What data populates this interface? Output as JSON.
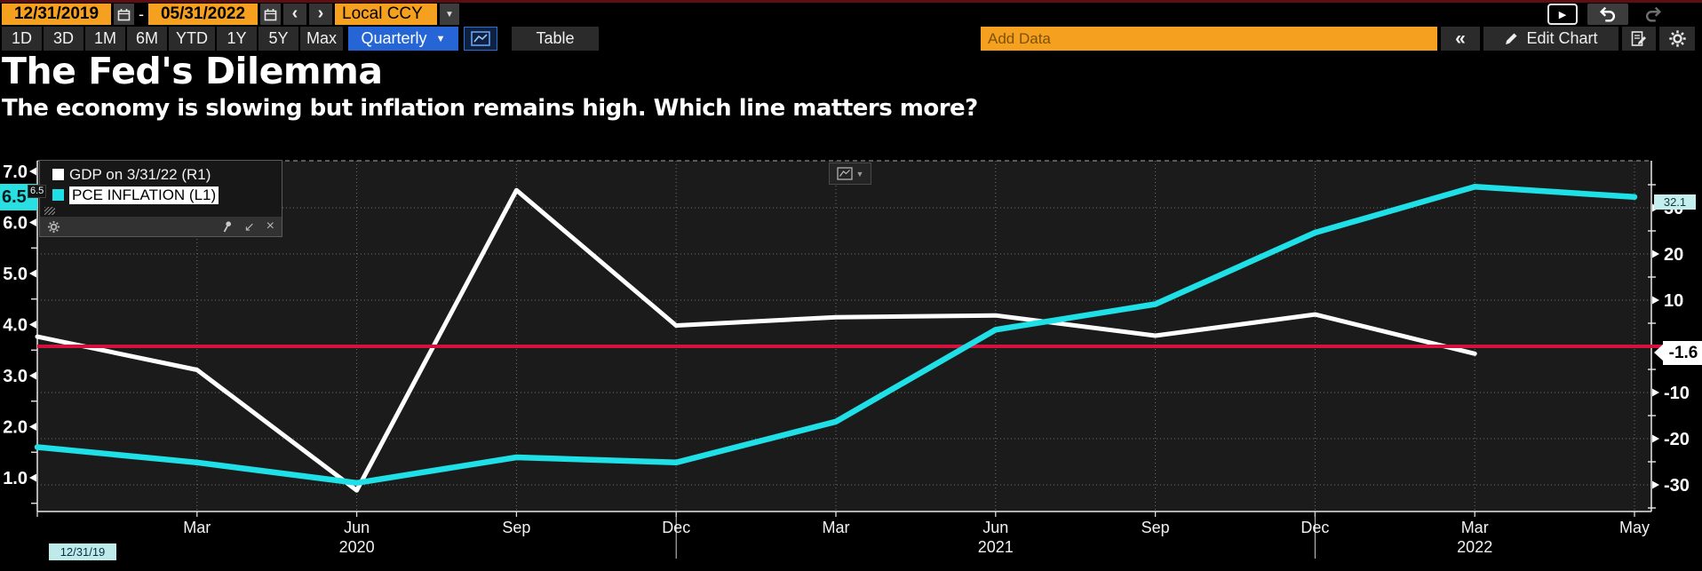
{
  "topbar": {
    "date_from": "12/31/2019",
    "date_separator": "-",
    "date_to": "05/31/2022",
    "prev_icon_label": "‹",
    "next_icon_label": "›",
    "currency": "Local CCY",
    "currency_caret": "▼"
  },
  "toolbar": {
    "ranges": [
      "1D",
      "3D",
      "1M",
      "6M",
      "YTD",
      "1Y",
      "5Y",
      "Max"
    ],
    "period_label": "Quarterly",
    "period_caret": "▼",
    "table_label": "Table",
    "add_data_placeholder": "Add Data",
    "back_icon_label": "«",
    "edit_chart_label": "Edit Chart"
  },
  "title": "The Fed's Dilemma",
  "subtitle": "The economy is slowing but inflation remains high. Which line matters more?",
  "legend": {
    "items": [
      {
        "label": "GDP on 3/31/22 (R1)",
        "color": "#ffffff",
        "selected": false
      },
      {
        "label": "PCE INFLATION (L1)",
        "color": "#1fe0e6",
        "selected": true
      }
    ],
    "close_icon": "×",
    "minimize_icon": "↙"
  },
  "badges": {
    "left_current": "6.5",
    "left_current_mini": "6.5",
    "right_equivalent": "32.1",
    "gdp_last": "-1.6",
    "start_date": "12/31/19"
  },
  "chart_data": {
    "type": "line",
    "x_categories": [
      "Dec 2019",
      "Mar 2020",
      "Jun 2020",
      "Sep 2020",
      "Dec 2020",
      "Mar 2021",
      "Jun 2021",
      "Sep 2021",
      "Dec 2021",
      "Mar 2022",
      "May 2022"
    ],
    "x_ticks": [
      {
        "index": 1,
        "label": "Mar"
      },
      {
        "index": 2,
        "label": "Jun",
        "year": "2020"
      },
      {
        "index": 3,
        "label": "Sep"
      },
      {
        "index": 4,
        "label": "Dec"
      },
      {
        "index": 5,
        "label": "Mar"
      },
      {
        "index": 6,
        "label": "Jun",
        "year": "2021"
      },
      {
        "index": 7,
        "label": "Sep"
      },
      {
        "index": 8,
        "label": "Dec"
      },
      {
        "index": 9,
        "label": "Mar",
        "year": "2022"
      },
      {
        "index": 10,
        "label": "May"
      }
    ],
    "year_separator_indices": [
      4,
      8
    ],
    "left_axis": {
      "ticks": [
        7.0,
        6.0,
        5.0,
        4.0,
        3.0,
        2.0,
        1.0
      ],
      "minor_ticks": [
        6.5,
        5.5,
        4.5,
        3.5,
        2.5,
        1.5,
        0.5
      ],
      "range": [
        0.3,
        7.2
      ]
    },
    "right_axis": {
      "ticks": [
        30,
        20,
        10,
        -10,
        -20,
        -30
      ],
      "minor_ticks": [
        35,
        25,
        15,
        5,
        -5,
        -15,
        -25,
        -35
      ],
      "range": [
        -36,
        40.5
      ]
    },
    "series": [
      {
        "name": "GDP on 3/31/22 (R1)",
        "axis": "right",
        "color": "#ffffff",
        "values": [
          2.1,
          -5.1,
          -31.2,
          33.8,
          4.5,
          6.3,
          6.7,
          2.3,
          6.9,
          -1.6,
          null
        ]
      },
      {
        "name": "PCE INFLATION (L1)",
        "axis": "left",
        "color": "#1fe0e6",
        "values": [
          1.6,
          1.3,
          0.9,
          1.4,
          1.3,
          2.1,
          3.9,
          4.4,
          5.8,
          6.7,
          6.5
        ]
      }
    ],
    "reference_line": {
      "axis": "right",
      "value": 0,
      "color": "#d4123d"
    },
    "grid": {
      "horizontal_at_right_ticks": true,
      "vertical_at_categories": true
    },
    "legend_position": "top-left"
  }
}
